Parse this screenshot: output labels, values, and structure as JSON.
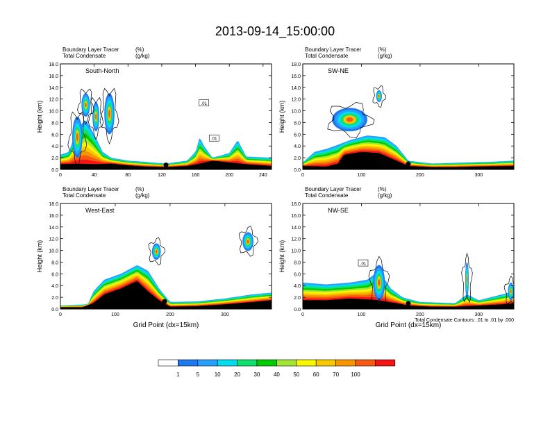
{
  "title": "2013-09-14_15:00:00",
  "colorbar": {
    "colors": [
      "#ffffff",
      "#1e78f0",
      "#28a0ff",
      "#00ddee",
      "#10e070",
      "#00cc00",
      "#a0e632",
      "#f8f800",
      "#f8c800",
      "#f89600",
      "#f85a14",
      "#f41414"
    ],
    "labels": [
      "1",
      "5",
      "10",
      "20",
      "30",
      "40",
      "50",
      "60",
      "70",
      "100"
    ]
  },
  "contour_note": "Total Condensate Contours: .01 to .01 by .000",
  "chart_data": [
    {
      "type": "heatmap",
      "label": "South-North",
      "subtitle_left": [
        "Boundary Layer Tracer",
        "Total Condensate"
      ],
      "subtitle_units": [
        "(%)",
        "(g/kg)"
      ],
      "ylabel": "Height (km)",
      "xlabel": "",
      "xlim": [
        0,
        250
      ],
      "ylim": [
        0,
        18
      ],
      "xticks": [
        0,
        40,
        80,
        120,
        160,
        200,
        240
      ],
      "yticks": [
        "0.0",
        "2.0",
        "4.0",
        "6.0",
        "8.0",
        "10.0",
        "12.0",
        "14.0",
        "16.0",
        "18.0"
      ],
      "marker_x": 125,
      "contour_labels": [
        {
          "text": ".01",
          "x": 170,
          "y": 11.3
        },
        {
          "text": ".01",
          "x": 182,
          "y": 5.3
        }
      ],
      "terrain": [
        [
          0,
          0.9
        ],
        [
          20,
          1.0
        ],
        [
          40,
          0.9
        ],
        [
          60,
          1.0
        ],
        [
          80,
          0.7
        ],
        [
          100,
          0.5
        ],
        [
          125,
          0.4
        ],
        [
          150,
          0.6
        ],
        [
          165,
          1.0
        ],
        [
          180,
          1.5
        ],
        [
          200,
          1.2
        ],
        [
          220,
          0.9
        ],
        [
          240,
          0.7
        ],
        [
          250,
          0.6
        ]
      ],
      "tracer_top": [
        [
          0,
          2.5
        ],
        [
          10,
          3.0
        ],
        [
          20,
          7.0
        ],
        [
          30,
          8.5
        ],
        [
          40,
          6.0
        ],
        [
          50,
          3.0
        ],
        [
          60,
          2.0
        ],
        [
          80,
          1.5
        ],
        [
          100,
          1.3
        ],
        [
          125,
          1.0
        ],
        [
          150,
          1.5
        ],
        [
          160,
          3.0
        ],
        [
          165,
          5.5
        ],
        [
          170,
          4.0
        ],
        [
          180,
          2.0
        ],
        [
          200,
          2.8
        ],
        [
          210,
          5.0
        ],
        [
          220,
          2.2
        ],
        [
          250,
          2.0
        ]
      ],
      "blobs": [
        {
          "x": 20,
          "y": 5.5,
          "rx": 6,
          "ry": 3.5
        },
        {
          "x": 30,
          "y": 11.0,
          "rx": 5,
          "ry": 2.0
        },
        {
          "x": 58,
          "y": 9.5,
          "rx": 6,
          "ry": 3.5
        },
        {
          "x": 42,
          "y": 9.0,
          "rx": 4,
          "ry": 2.5
        }
      ]
    },
    {
      "type": "heatmap",
      "label": "SW-NE",
      "subtitle_left": [
        "Boundary Layer Tracer",
        "Total Condensate"
      ],
      "subtitle_units": [
        "(%)",
        "(g/kg)"
      ],
      "ylabel": "Height (km)",
      "xlabel": "",
      "xlim": [
        0,
        360
      ],
      "ylim": [
        0,
        18
      ],
      "xticks": [
        0,
        100,
        200,
        300
      ],
      "yticks": [
        "0.0",
        "2.0",
        "4.0",
        "6.0",
        "8.0",
        "10.0",
        "12.0",
        "14.0",
        "16.0",
        "18.0"
      ],
      "marker_x": 180,
      "contour_labels": [],
      "terrain": [
        [
          0,
          0.6
        ],
        [
          40,
          0.5
        ],
        [
          60,
          1.0
        ],
        [
          70,
          2.5
        ],
        [
          100,
          3.0
        ],
        [
          130,
          2.8
        ],
        [
          160,
          1.5
        ],
        [
          180,
          0.6
        ],
        [
          220,
          0.4
        ],
        [
          260,
          0.4
        ],
        [
          300,
          0.5
        ],
        [
          360,
          0.6
        ]
      ],
      "tracer_top": [
        [
          0,
          1.2
        ],
        [
          20,
          3.0
        ],
        [
          40,
          3.5
        ],
        [
          60,
          4.2
        ],
        [
          80,
          5.0
        ],
        [
          110,
          5.8
        ],
        [
          140,
          5.5
        ],
        [
          160,
          4.0
        ],
        [
          180,
          1.5
        ],
        [
          220,
          1.0
        ],
        [
          280,
          1.2
        ],
        [
          320,
          1.3
        ],
        [
          360,
          1.5
        ]
      ],
      "blobs": [
        {
          "x": 80,
          "y": 8.5,
          "rx": 30,
          "ry": 2.0
        },
        {
          "x": 130,
          "y": 12.5,
          "rx": 5,
          "ry": 1.0
        }
      ]
    },
    {
      "type": "heatmap",
      "label": "West-East",
      "subtitle_left": [
        "Boundary Layer Tracer",
        "Total Condensate"
      ],
      "subtitle_units": [
        "(%)",
        "(g/kg)"
      ],
      "ylabel": "Height (km)",
      "xlabel": "Grid Point (dx=15km)",
      "xlim": [
        0,
        385
      ],
      "ylim": [
        0,
        18
      ],
      "xticks": [
        0,
        100,
        200,
        300
      ],
      "yticks": [
        "0.0",
        "2.0",
        "4.0",
        "6.0",
        "8.0",
        "10.0",
        "12.0",
        "14.0",
        "16.0",
        "18.0"
      ],
      "marker_x": 190,
      "contour_labels": [],
      "terrain": [
        [
          0,
          0.3
        ],
        [
          40,
          0.3
        ],
        [
          60,
          1.0
        ],
        [
          80,
          2.5
        ],
        [
          110,
          3.5
        ],
        [
          140,
          4.8
        ],
        [
          160,
          3.0
        ],
        [
          180,
          1.5
        ],
        [
          200,
          0.4
        ],
        [
          250,
          0.5
        ],
        [
          300,
          0.8
        ],
        [
          350,
          1.2
        ],
        [
          385,
          1.5
        ]
      ],
      "tracer_top": [
        [
          0,
          0.6
        ],
        [
          50,
          0.8
        ],
        [
          60,
          3.0
        ],
        [
          80,
          5.0
        ],
        [
          110,
          6.0
        ],
        [
          140,
          7.5
        ],
        [
          160,
          6.5
        ],
        [
          180,
          3.5
        ],
        [
          200,
          1.2
        ],
        [
          250,
          1.3
        ],
        [
          300,
          1.8
        ],
        [
          350,
          2.5
        ],
        [
          385,
          2.8
        ]
      ],
      "blobs": [
        {
          "x": 175,
          "y": 9.8,
          "rx": 8,
          "ry": 1.4
        },
        {
          "x": 342,
          "y": 11.5,
          "rx": 10,
          "ry": 1.6
        }
      ]
    },
    {
      "type": "heatmap",
      "label": "NW-SE",
      "subtitle_left": [
        "Boundary Layer Tracer",
        "Total Condensate"
      ],
      "subtitle_units": [
        "(%)",
        "(g/kg)"
      ],
      "ylabel": "Height (km)",
      "xlabel": "Grid Point (dx=15km)",
      "xlim": [
        0,
        360
      ],
      "ylim": [
        0,
        18
      ],
      "xticks": [
        0,
        100,
        200,
        300
      ],
      "yticks": [
        "0.0",
        "2.0",
        "4.0",
        "6.0",
        "8.0",
        "10.0",
        "12.0",
        "14.0",
        "16.0",
        "18.0"
      ],
      "marker_x": 180,
      "contour_labels": [
        {
          "text": ".01",
          "x": 103,
          "y": 7.8
        }
      ],
      "terrain": [
        [
          0,
          1.5
        ],
        [
          40,
          1.5
        ],
        [
          80,
          1.8
        ],
        [
          120,
          1.6
        ],
        [
          160,
          1.0
        ],
        [
          180,
          0.6
        ],
        [
          220,
          0.4
        ],
        [
          260,
          0.4
        ],
        [
          300,
          0.6
        ],
        [
          340,
          0.8
        ],
        [
          360,
          1.0
        ]
      ],
      "tracer_top": [
        [
          0,
          4.5
        ],
        [
          40,
          4.2
        ],
        [
          80,
          4.5
        ],
        [
          110,
          5.0
        ],
        [
          130,
          6.5
        ],
        [
          150,
          3.5
        ],
        [
          170,
          2.0
        ],
        [
          200,
          1.2
        ],
        [
          260,
          1.0
        ],
        [
          280,
          2.5
        ],
        [
          300,
          1.5
        ],
        [
          340,
          2.5
        ],
        [
          360,
          3.0
        ]
      ],
      "blobs": [
        {
          "x": 130,
          "y": 4.5,
          "rx": 10,
          "ry": 3.0
        },
        {
          "x": 280,
          "y": 5.0,
          "rx": 3,
          "ry": 3.0
        },
        {
          "x": 355,
          "y": 3.0,
          "rx": 5,
          "ry": 1.5
        }
      ]
    }
  ]
}
